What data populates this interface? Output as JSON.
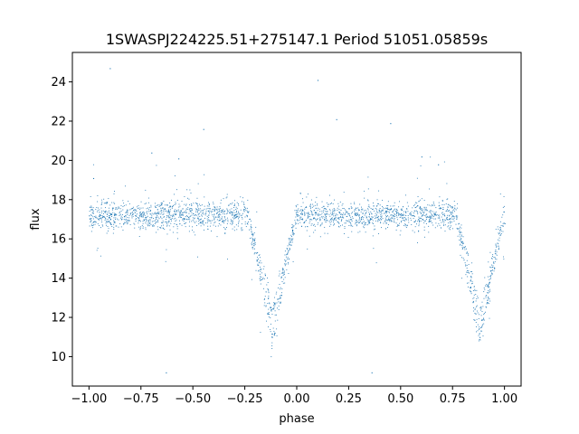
{
  "chart_data": {
    "type": "scatter",
    "title": "1SWASPJ224225.51+275147.1 Period 51051.05859s",
    "xlabel": "phase",
    "ylabel": "flux",
    "xlim": [
      -1.08,
      1.08
    ],
    "ylim": [
      8.5,
      25.5
    ],
    "x_ticks": [
      -1.0,
      -0.75,
      -0.5,
      -0.25,
      0.0,
      0.25,
      0.5,
      0.75,
      1.0
    ],
    "x_tick_labels": [
      "−1.00",
      "−0.75",
      "−0.50",
      "−0.25",
      "0.00",
      "0.25",
      "0.50",
      "0.75",
      "1.00"
    ],
    "y_ticks": [
      10,
      12,
      14,
      16,
      18,
      20,
      22,
      24
    ],
    "y_tick_labels": [
      "10",
      "12",
      "14",
      "16",
      "18",
      "20",
      "22",
      "24"
    ],
    "grid": false,
    "legend": "none",
    "point_color": "#1f77b4",
    "series": [
      {
        "profile": {
          "baseline_flux": 17.2,
          "baseline_scatter": 0.35,
          "primary_eclipses": [
            {
              "center_phase": -0.12,
              "min_flux": 11.0,
              "half_width": 0.115
            },
            {
              "center_phase": 0.88,
              "min_flux": 11.0,
              "half_width": 0.115
            }
          ],
          "secondary_branch_min_flux": 12.3,
          "phase_range": [
            -1.0,
            1.0
          ]
        },
        "sample_points": [
          [
            -1.0,
            17.2
          ],
          [
            -0.75,
            17.3
          ],
          [
            -0.5,
            17.3
          ],
          [
            -0.3,
            17.2
          ],
          [
            -0.22,
            16.4
          ],
          [
            -0.18,
            14.0
          ],
          [
            -0.14,
            12.2
          ],
          [
            -0.12,
            11.0
          ],
          [
            -0.08,
            12.8
          ],
          [
            -0.04,
            15.0
          ],
          [
            0.0,
            17.0
          ],
          [
            0.25,
            17.3
          ],
          [
            0.5,
            17.3
          ],
          [
            0.75,
            17.2
          ],
          [
            0.8,
            15.8
          ],
          [
            0.86,
            12.2
          ],
          [
            0.88,
            11.0
          ],
          [
            0.92,
            13.0
          ],
          [
            0.97,
            15.5
          ],
          [
            1.0,
            16.8
          ]
        ],
        "outliers": [
          [
            -0.98,
            19.1
          ],
          [
            -0.9,
            24.7
          ],
          [
            -0.63,
            9.2
          ],
          [
            -0.57,
            20.1
          ],
          [
            -0.45,
            21.6
          ],
          [
            0.1,
            24.1
          ],
          [
            0.19,
            22.1
          ],
          [
            0.36,
            9.2
          ],
          [
            0.45,
            21.9
          ],
          [
            0.6,
            20.2
          ],
          [
            -0.7,
            20.4
          ],
          [
            0.68,
            19.8
          ]
        ]
      }
    ]
  }
}
